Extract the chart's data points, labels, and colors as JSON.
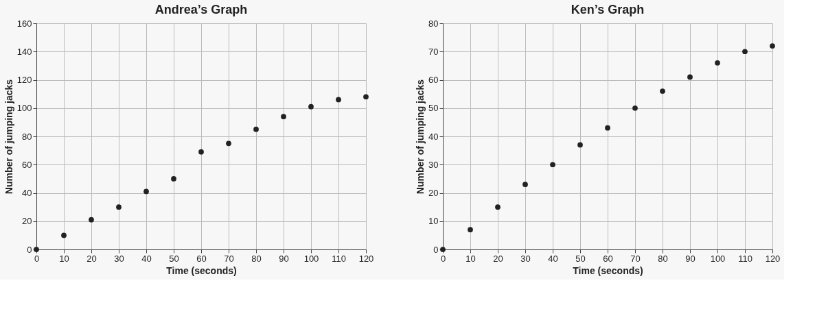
{
  "chart_data": [
    {
      "type": "scatter",
      "title": "Andrea’s Graph",
      "xlabel": "Time (seconds)",
      "ylabel": "Number of jumping jacks",
      "x": [
        0,
        10,
        20,
        30,
        40,
        50,
        60,
        70,
        80,
        90,
        100,
        110,
        120
      ],
      "series": [
        {
          "color": "#222222",
          "values": [
            0,
            10,
            21,
            30,
            41,
            50,
            69,
            75,
            85,
            94,
            101,
            106,
            108
          ]
        }
      ],
      "xlim": [
        0,
        120
      ],
      "xticks": [
        0,
        10,
        20,
        30,
        40,
        50,
        60,
        70,
        80,
        90,
        100,
        110,
        120
      ],
      "ylim": [
        0,
        160
      ],
      "yticks": [
        0,
        20,
        40,
        60,
        80,
        100,
        120,
        140,
        160
      ],
      "grid": true,
      "marker": "circle"
    },
    {
      "type": "scatter",
      "title": "Ken’s Graph",
      "xlabel": "Time (seconds)",
      "ylabel": "Number of jumping jacks",
      "x": [
        0,
        10,
        20,
        30,
        40,
        50,
        60,
        70,
        80,
        90,
        100,
        110,
        120
      ],
      "series": [
        {
          "color": "#222222",
          "values": [
            0,
            7,
            15,
            23,
            30,
            37,
            43,
            50,
            56,
            61,
            66,
            70,
            72
          ]
        }
      ],
      "xlim": [
        0,
        120
      ],
      "xticks": [
        0,
        10,
        20,
        30,
        40,
        50,
        60,
        70,
        80,
        90,
        100,
        110,
        120
      ],
      "ylim": [
        0,
        80
      ],
      "yticks": [
        0,
        10,
        20,
        30,
        40,
        50,
        60,
        70,
        80
      ],
      "grid": true,
      "marker": "circle"
    }
  ]
}
